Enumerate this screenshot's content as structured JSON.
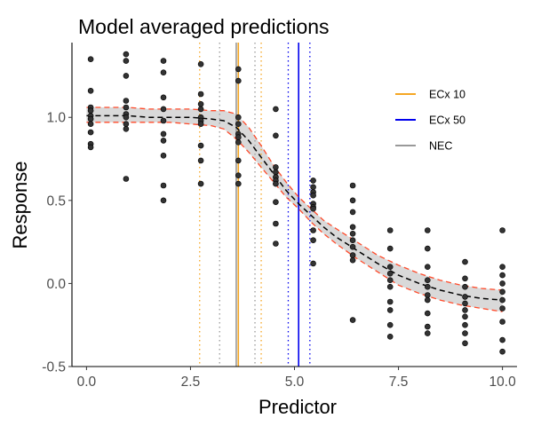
{
  "chart_data": {
    "type": "scatter",
    "title": "Model averaged predictions",
    "xlabel": "Predictor",
    "ylabel": "Response",
    "xlim": [
      -0.35,
      10.35
    ],
    "ylim": [
      -0.5,
      1.45
    ],
    "x_ticks": [
      "0.0",
      "2.5",
      "5.0",
      "7.5",
      "10.0"
    ],
    "y_ticks": [
      "-0.5",
      "0.0",
      "0.5",
      "1.0"
    ],
    "grid": false,
    "legend_position": "top-right",
    "legend": [
      {
        "name": "ECx 10",
        "color": "#f5a623"
      },
      {
        "name": "ECx 50",
        "color": "#0000ee"
      },
      {
        "name": "NEC",
        "color": "#999999"
      }
    ],
    "vlines": [
      {
        "series": "ECx 10",
        "value": 3.65,
        "style": "solid",
        "color": "#f5a623"
      },
      {
        "series": "ECx 10",
        "value": 2.72,
        "style": "dotted",
        "color": "#f5a623"
      },
      {
        "series": "ECx 10",
        "value": 4.2,
        "style": "dotted",
        "color": "#f5a623"
      },
      {
        "series": "ECx 50",
        "value": 5.1,
        "style": "solid",
        "color": "#0000ee"
      },
      {
        "series": "ECx 50",
        "value": 4.85,
        "style": "dotted",
        "color": "#0000ee"
      },
      {
        "series": "ECx 50",
        "value": 5.37,
        "style": "dotted",
        "color": "#0000ee"
      },
      {
        "series": "NEC",
        "value": 3.6,
        "style": "solid",
        "color": "#999999"
      },
      {
        "series": "NEC",
        "value": 3.2,
        "style": "dotted",
        "color": "#999999"
      },
      {
        "series": "NEC",
        "value": 4.05,
        "style": "dotted",
        "color": "#999999"
      }
    ],
    "curve": {
      "x": [
        0,
        0.5,
        1,
        1.5,
        2,
        2.5,
        3,
        3.3,
        3.6,
        3.9,
        4.2,
        4.5,
        4.8,
        5.1,
        5.4,
        5.7,
        6.0,
        6.5,
        7.0,
        7.5,
        8.0,
        8.5,
        9.0,
        9.5,
        10.0
      ],
      "mean": [
        1.01,
        1.01,
        1.01,
        1.0,
        1.0,
        1.0,
        0.99,
        0.98,
        0.94,
        0.86,
        0.76,
        0.66,
        0.56,
        0.48,
        0.41,
        0.34,
        0.28,
        0.2,
        0.12,
        0.05,
        0.0,
        -0.04,
        -0.07,
        -0.09,
        -0.1
      ],
      "lower": [
        0.97,
        0.97,
        0.97,
        0.97,
        0.97,
        0.96,
        0.95,
        0.93,
        0.87,
        0.79,
        0.7,
        0.61,
        0.52,
        0.45,
        0.37,
        0.3,
        0.24,
        0.15,
        0.07,
        -0.01,
        -0.06,
        -0.1,
        -0.13,
        -0.15,
        -0.17
      ],
      "upper": [
        1.06,
        1.06,
        1.06,
        1.05,
        1.05,
        1.05,
        1.04,
        1.04,
        1.02,
        0.94,
        0.83,
        0.71,
        0.61,
        0.52,
        0.45,
        0.38,
        0.33,
        0.25,
        0.17,
        0.11,
        0.06,
        0.02,
        -0.01,
        -0.03,
        -0.04
      ]
    },
    "points": [
      {
        "x": 0.1,
        "y": 1.35
      },
      {
        "x": 0.1,
        "y": 1.16
      },
      {
        "x": 0.1,
        "y": 1.06
      },
      {
        "x": 0.1,
        "y": 1.04
      },
      {
        "x": 0.1,
        "y": 1.01
      },
      {
        "x": 0.1,
        "y": 0.99
      },
      {
        "x": 0.1,
        "y": 0.96
      },
      {
        "x": 0.1,
        "y": 0.91
      },
      {
        "x": 0.1,
        "y": 0.84
      },
      {
        "x": 0.1,
        "y": 0.82
      },
      {
        "x": 0.95,
        "y": 1.38
      },
      {
        "x": 0.95,
        "y": 1.34
      },
      {
        "x": 0.95,
        "y": 1.25
      },
      {
        "x": 0.95,
        "y": 1.1
      },
      {
        "x": 0.95,
        "y": 1.06
      },
      {
        "x": 0.95,
        "y": 1.02
      },
      {
        "x": 0.95,
        "y": 1.0
      },
      {
        "x": 0.95,
        "y": 0.96
      },
      {
        "x": 0.95,
        "y": 0.93
      },
      {
        "x": 0.95,
        "y": 0.63
      },
      {
        "x": 1.85,
        "y": 1.34
      },
      {
        "x": 1.85,
        "y": 1.27
      },
      {
        "x": 1.85,
        "y": 1.12
      },
      {
        "x": 1.85,
        "y": 1.05
      },
      {
        "x": 1.85,
        "y": 0.98
      },
      {
        "x": 1.85,
        "y": 0.9
      },
      {
        "x": 1.85,
        "y": 0.86
      },
      {
        "x": 1.85,
        "y": 0.77
      },
      {
        "x": 1.85,
        "y": 0.59
      },
      {
        "x": 1.85,
        "y": 0.5
      },
      {
        "x": 2.75,
        "y": 1.32
      },
      {
        "x": 2.75,
        "y": 1.14
      },
      {
        "x": 2.75,
        "y": 1.08
      },
      {
        "x": 2.75,
        "y": 1.05
      },
      {
        "x": 2.75,
        "y": 1.0
      },
      {
        "x": 2.75,
        "y": 0.98
      },
      {
        "x": 2.75,
        "y": 0.96
      },
      {
        "x": 2.75,
        "y": 0.83
      },
      {
        "x": 2.75,
        "y": 0.74
      },
      {
        "x": 2.75,
        "y": 0.6
      },
      {
        "x": 3.65,
        "y": 1.29
      },
      {
        "x": 3.65,
        "y": 1.22
      },
      {
        "x": 3.65,
        "y": 1.0
      },
      {
        "x": 3.65,
        "y": 0.96
      },
      {
        "x": 3.65,
        "y": 0.9
      },
      {
        "x": 3.65,
        "y": 0.88
      },
      {
        "x": 3.65,
        "y": 0.85
      },
      {
        "x": 3.65,
        "y": 0.74
      },
      {
        "x": 3.65,
        "y": 0.65
      },
      {
        "x": 3.65,
        "y": 0.6
      },
      {
        "x": 4.55,
        "y": 1.05
      },
      {
        "x": 4.55,
        "y": 0.89
      },
      {
        "x": 4.55,
        "y": 0.7
      },
      {
        "x": 4.55,
        "y": 0.67
      },
      {
        "x": 4.55,
        "y": 0.64
      },
      {
        "x": 4.55,
        "y": 0.62
      },
      {
        "x": 4.55,
        "y": 0.6
      },
      {
        "x": 4.55,
        "y": 0.49
      },
      {
        "x": 4.55,
        "y": 0.36
      },
      {
        "x": 4.55,
        "y": 0.24
      },
      {
        "x": 5.45,
        "y": 0.62
      },
      {
        "x": 5.45,
        "y": 0.58
      },
      {
        "x": 5.45,
        "y": 0.55
      },
      {
        "x": 5.45,
        "y": 0.53
      },
      {
        "x": 5.45,
        "y": 0.48
      },
      {
        "x": 5.45,
        "y": 0.46
      },
      {
        "x": 5.45,
        "y": 0.45
      },
      {
        "x": 5.45,
        "y": 0.32
      },
      {
        "x": 5.45,
        "y": 0.26
      },
      {
        "x": 5.45,
        "y": 0.12
      },
      {
        "x": 6.4,
        "y": 0.59
      },
      {
        "x": 6.4,
        "y": 0.5
      },
      {
        "x": 6.4,
        "y": 0.43
      },
      {
        "x": 6.4,
        "y": 0.34
      },
      {
        "x": 6.4,
        "y": 0.3
      },
      {
        "x": 6.4,
        "y": 0.26
      },
      {
        "x": 6.4,
        "y": 0.22
      },
      {
        "x": 6.4,
        "y": 0.17
      },
      {
        "x": 6.4,
        "y": 0.14
      },
      {
        "x": 6.4,
        "y": -0.22
      },
      {
        "x": 7.3,
        "y": 0.32
      },
      {
        "x": 7.3,
        "y": 0.21
      },
      {
        "x": 7.3,
        "y": 0.1
      },
      {
        "x": 7.3,
        "y": 0.06
      },
      {
        "x": 7.3,
        "y": 0.02
      },
      {
        "x": 7.3,
        "y": -0.02
      },
      {
        "x": 7.3,
        "y": -0.11
      },
      {
        "x": 7.3,
        "y": -0.16
      },
      {
        "x": 7.3,
        "y": -0.25
      },
      {
        "x": 7.3,
        "y": -0.32
      },
      {
        "x": 8.2,
        "y": 0.32
      },
      {
        "x": 8.2,
        "y": 0.21
      },
      {
        "x": 8.2,
        "y": 0.1
      },
      {
        "x": 8.2,
        "y": 0.02
      },
      {
        "x": 8.2,
        "y": -0.02
      },
      {
        "x": 8.2,
        "y": -0.07
      },
      {
        "x": 8.2,
        "y": -0.1
      },
      {
        "x": 8.2,
        "y": -0.18
      },
      {
        "x": 8.2,
        "y": -0.26
      },
      {
        "x": 8.2,
        "y": -0.3
      },
      {
        "x": 9.1,
        "y": 0.13
      },
      {
        "x": 9.1,
        "y": 0.03
      },
      {
        "x": 9.1,
        "y": -0.02
      },
      {
        "x": 9.1,
        "y": -0.08
      },
      {
        "x": 9.1,
        "y": -0.12
      },
      {
        "x": 9.1,
        "y": -0.16
      },
      {
        "x": 9.1,
        "y": -0.2
      },
      {
        "x": 9.1,
        "y": -0.25
      },
      {
        "x": 9.1,
        "y": -0.3
      },
      {
        "x": 9.1,
        "y": -0.36
      },
      {
        "x": 10.0,
        "y": 0.32
      },
      {
        "x": 10.0,
        "y": 0.1
      },
      {
        "x": 10.0,
        "y": 0.05
      },
      {
        "x": 10.0,
        "y": 0.0
      },
      {
        "x": 10.0,
        "y": -0.05
      },
      {
        "x": 10.0,
        "y": -0.1
      },
      {
        "x": 10.0,
        "y": -0.15
      },
      {
        "x": 10.0,
        "y": -0.23
      },
      {
        "x": 10.0,
        "y": -0.34
      },
      {
        "x": 10.0,
        "y": -0.41
      }
    ]
  }
}
